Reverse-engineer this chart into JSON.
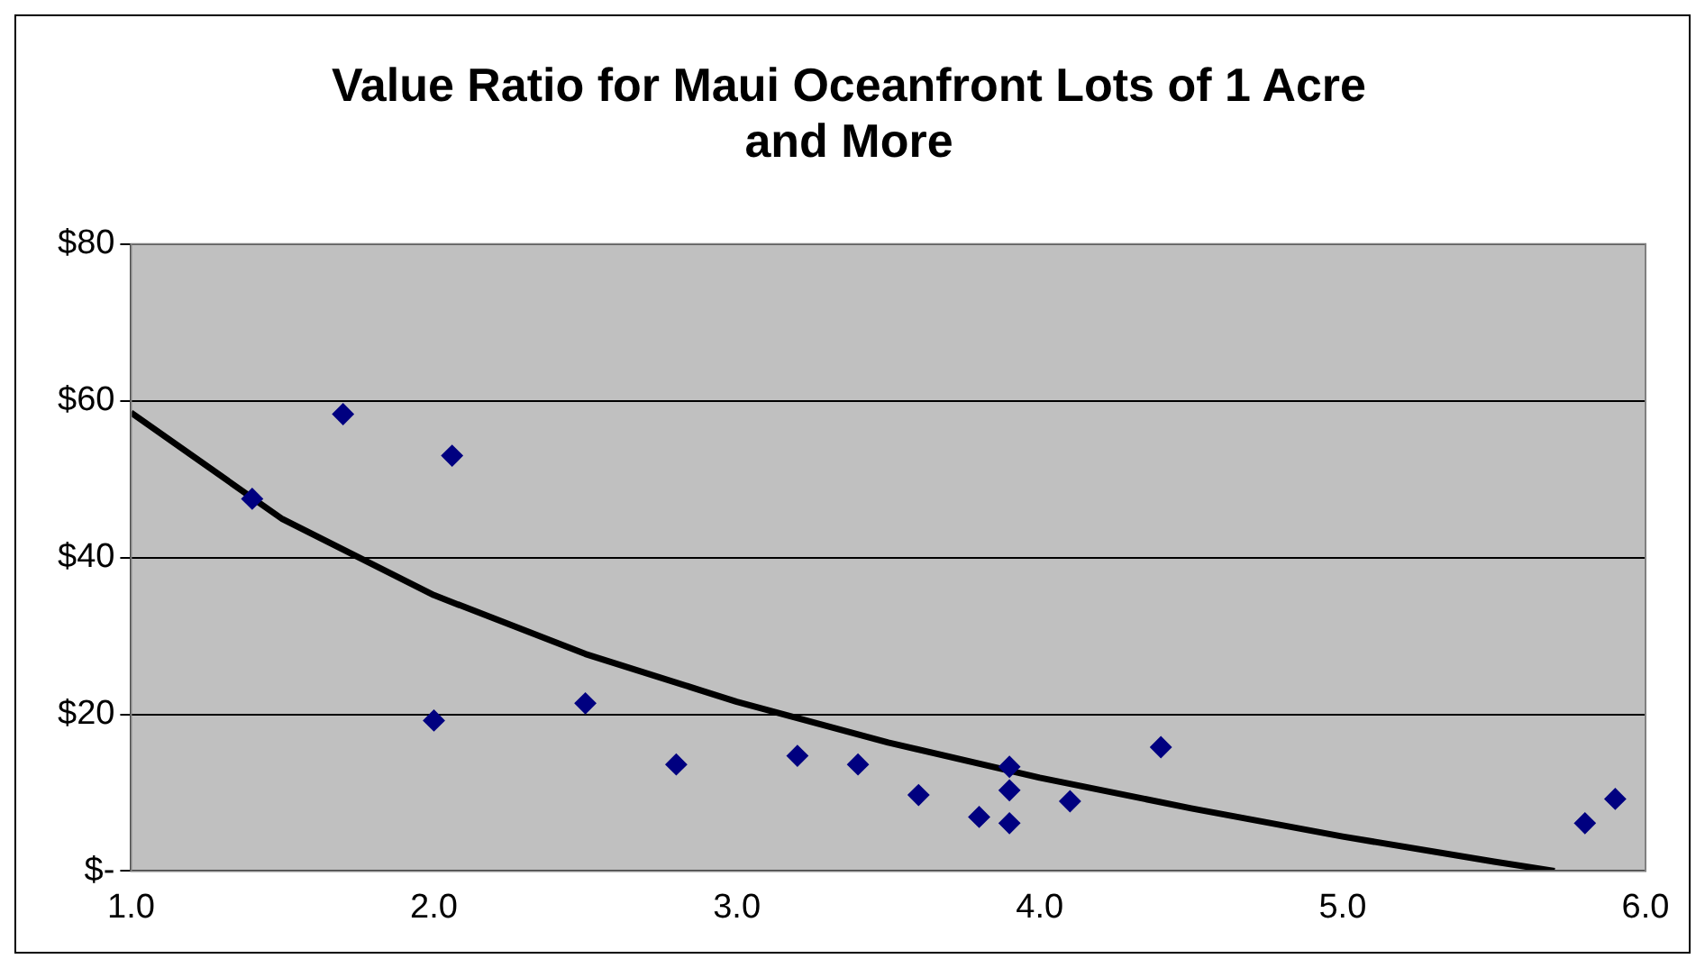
{
  "chart_data": {
    "type": "scatter",
    "title": "Value Ratio for Maui Oceanfront Lots of 1 Acre and More",
    "series": [
      {
        "type": "scatter",
        "color": "#000080",
        "marker": "diamond",
        "x": [
          1.4,
          1.7,
          2.06,
          2.0,
          2.5,
          2.8,
          3.2,
          3.4,
          3.6,
          3.8,
          3.9,
          3.9,
          3.9,
          4.1,
          4.4,
          5.8,
          5.9
        ],
        "values": [
          47.5,
          58.3,
          53,
          19.2,
          21.4,
          13.6,
          14.7,
          13.6,
          9.7,
          6.9,
          13.3,
          10.3,
          6.1,
          8.9,
          15.8,
          6.1,
          9.2
        ]
      },
      {
        "type": "line",
        "color": "#000000",
        "marker": "none",
        "x": [
          1.0,
          1.5,
          2.0,
          2.5,
          3.0,
          3.5,
          4.0,
          4.5,
          5.0,
          5.5,
          5.7
        ],
        "values": [
          58.5,
          44.9,
          35.2,
          27.7,
          21.6,
          16.4,
          11.9,
          8.0,
          4.4,
          1.2,
          0
        ]
      }
    ],
    "xlim": [
      1,
      6
    ],
    "xticks": [
      {
        "value": 1,
        "label": "1.0"
      },
      {
        "value": 2,
        "label": "2.0"
      },
      {
        "value": 3,
        "label": "3.0"
      },
      {
        "value": 4,
        "label": "4.0"
      },
      {
        "value": 5,
        "label": "5.0"
      },
      {
        "value": 6,
        "label": "6.0"
      }
    ],
    "ylim": [
      0,
      80
    ],
    "yticks": [
      {
        "value": 0,
        "label": "$-"
      },
      {
        "value": 20,
        "label": "$20"
      },
      {
        "value": 40,
        "label": "$40"
      },
      {
        "value": 60,
        "label": "$60"
      },
      {
        "value": 80,
        "label": "$80"
      }
    ],
    "grid": "y",
    "legend": false
  }
}
